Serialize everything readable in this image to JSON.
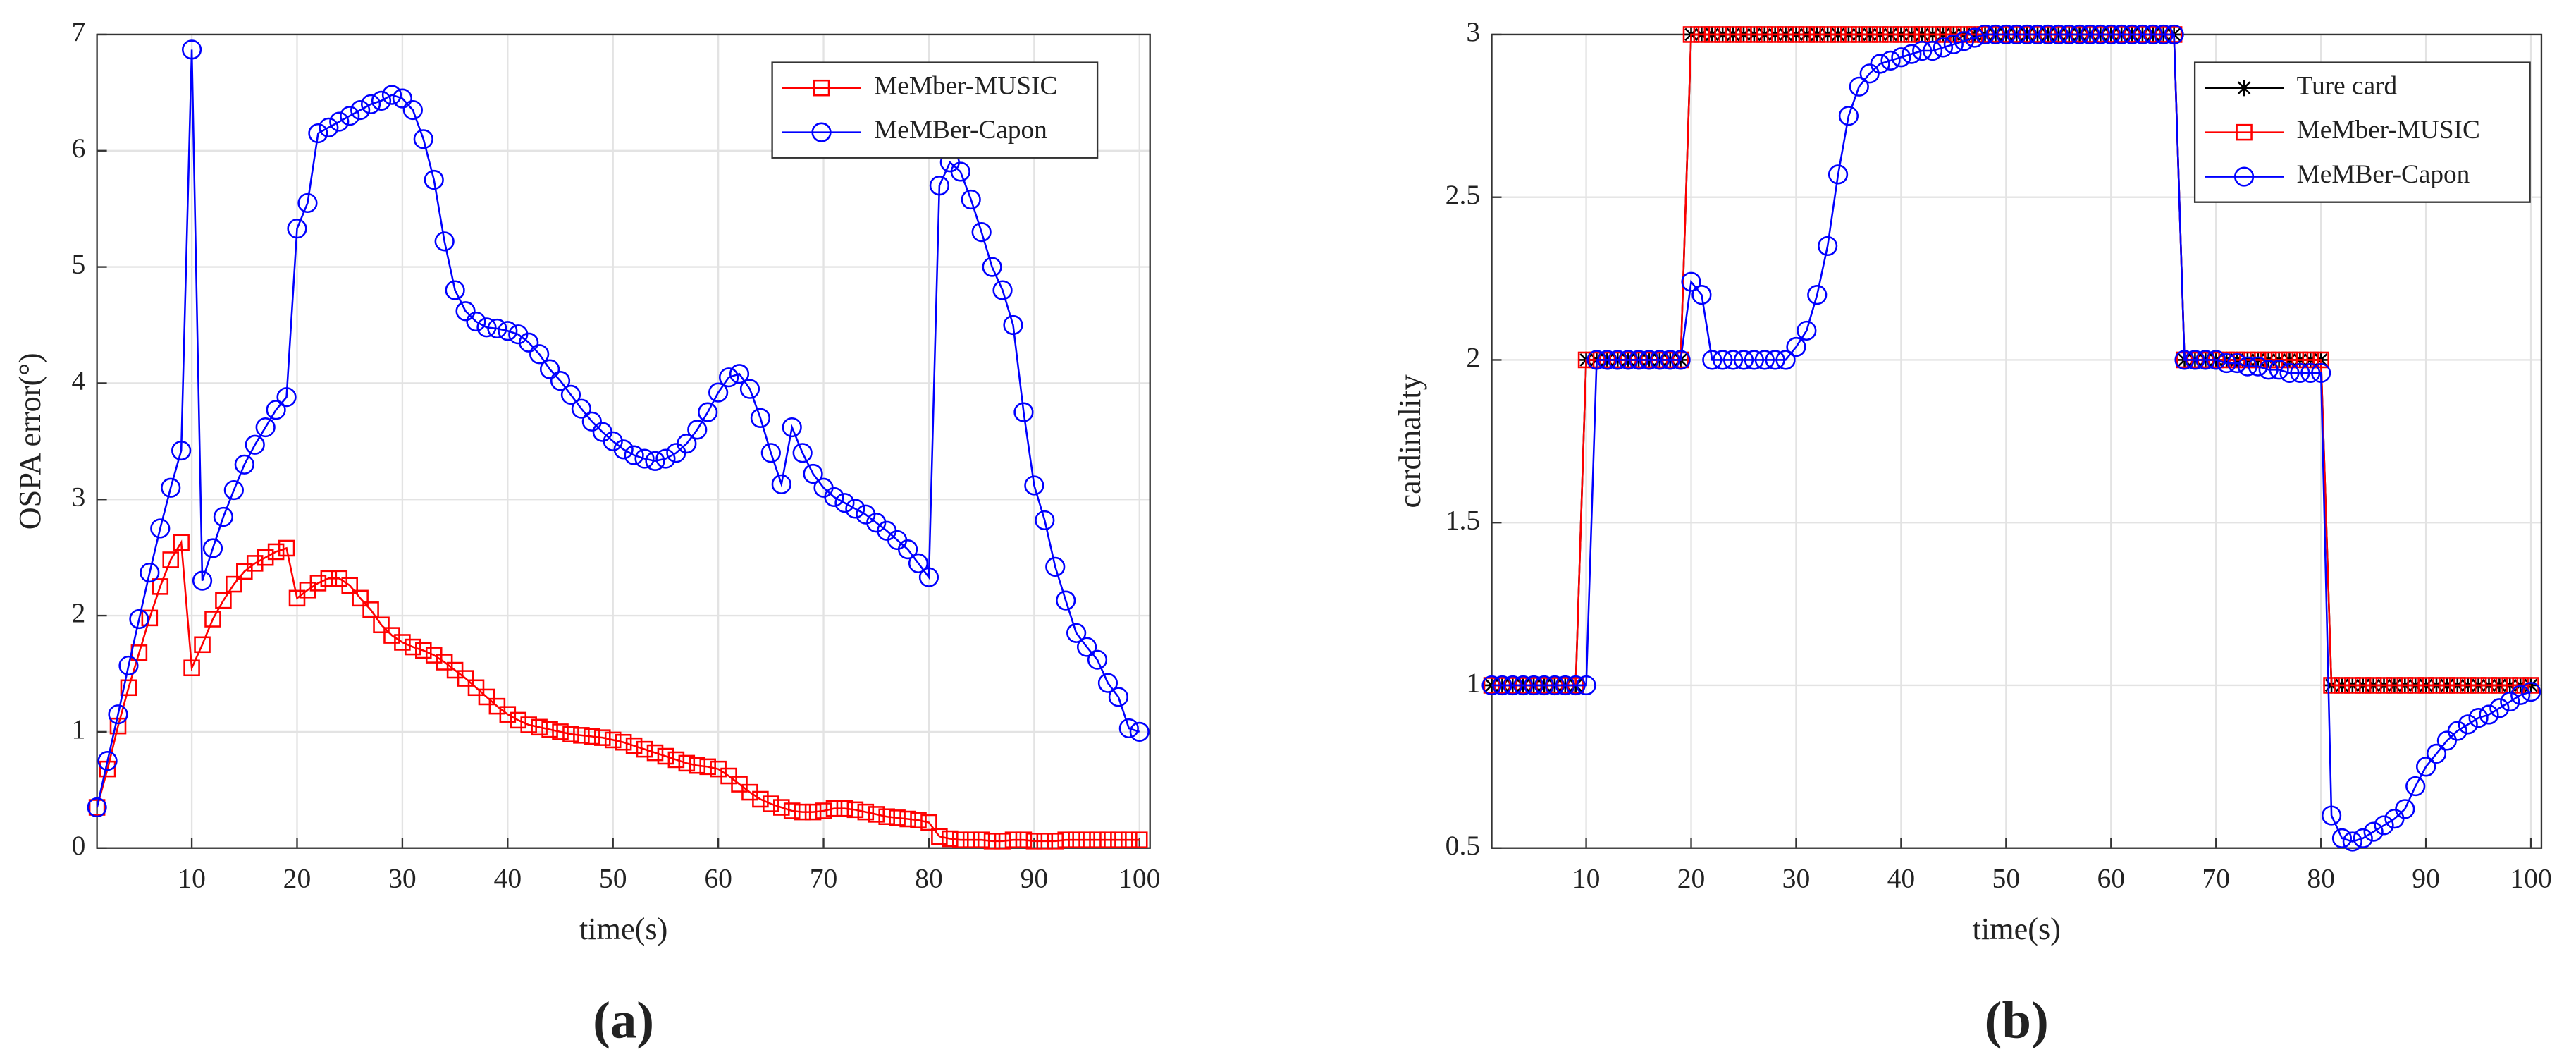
{
  "chart_data": [
    {
      "type": "line",
      "panel_label": "(a)",
      "xlabel": "time(s)",
      "ylabel": "OSPA error(°)",
      "xlim": [
        1,
        101
      ],
      "xticks": [
        10,
        20,
        30,
        40,
        50,
        60,
        70,
        80,
        90,
        100
      ],
      "ylim": [
        0,
        7
      ],
      "yticks": [
        0,
        1,
        2,
        3,
        4,
        5,
        6,
        7
      ],
      "grid": true,
      "legend": "upper right",
      "x": [
        1,
        2,
        3,
        4,
        5,
        6,
        7,
        8,
        9,
        10,
        11,
        12,
        13,
        14,
        15,
        16,
        17,
        18,
        19,
        20,
        21,
        22,
        23,
        24,
        25,
        26,
        27,
        28,
        29,
        30,
        31,
        32,
        33,
        34,
        35,
        36,
        37,
        38,
        39,
        40,
        41,
        42,
        43,
        44,
        45,
        46,
        47,
        48,
        49,
        50,
        51,
        52,
        53,
        54,
        55,
        56,
        57,
        58,
        59,
        60,
        61,
        62,
        63,
        64,
        65,
        66,
        67,
        68,
        69,
        70,
        71,
        72,
        73,
        74,
        75,
        76,
        77,
        78,
        79,
        80,
        81,
        82,
        83,
        84,
        85,
        86,
        87,
        88,
        89,
        90,
        91,
        92,
        93,
        94,
        95,
        96,
        97,
        98,
        99,
        100
      ],
      "series": [
        {
          "name": "MeMber-MUSIC",
          "color": "#ff0000",
          "marker": "square",
          "values": [
            0.35,
            0.68,
            1.05,
            1.38,
            1.68,
            1.98,
            2.25,
            2.48,
            2.63,
            1.55,
            1.75,
            1.97,
            2.13,
            2.27,
            2.38,
            2.45,
            2.5,
            2.55,
            2.58,
            2.15,
            2.22,
            2.28,
            2.32,
            2.32,
            2.26,
            2.15,
            2.05,
            1.92,
            1.83,
            1.77,
            1.73,
            1.7,
            1.66,
            1.6,
            1.53,
            1.46,
            1.38,
            1.3,
            1.22,
            1.15,
            1.1,
            1.06,
            1.04,
            1.02,
            1.0,
            0.98,
            0.97,
            0.96,
            0.95,
            0.93,
            0.91,
            0.88,
            0.85,
            0.82,
            0.79,
            0.76,
            0.73,
            0.71,
            0.7,
            0.68,
            0.62,
            0.55,
            0.48,
            0.42,
            0.38,
            0.35,
            0.32,
            0.31,
            0.31,
            0.32,
            0.34,
            0.34,
            0.33,
            0.31,
            0.29,
            0.27,
            0.26,
            0.25,
            0.24,
            0.22,
            0.1,
            0.08,
            0.07,
            0.07,
            0.07,
            0.06,
            0.06,
            0.07,
            0.07,
            0.06,
            0.06,
            0.06,
            0.07,
            0.07,
            0.07,
            0.07,
            0.07,
            0.07,
            0.07,
            0.07
          ]
        },
        {
          "name": "MeMBer-Capon",
          "color": "#0000ff",
          "marker": "circle",
          "values": [
            0.35,
            0.75,
            1.15,
            1.57,
            1.97,
            2.37,
            2.75,
            3.1,
            3.42,
            6.87,
            2.3,
            2.58,
            2.85,
            3.08,
            3.3,
            3.47,
            3.62,
            3.77,
            3.88,
            5.33,
            5.55,
            6.15,
            6.2,
            6.25,
            6.3,
            6.35,
            6.4,
            6.43,
            6.48,
            6.45,
            6.35,
            6.1,
            5.75,
            5.22,
            4.8,
            4.62,
            4.53,
            4.48,
            4.47,
            4.45,
            4.42,
            4.35,
            4.25,
            4.12,
            4.02,
            3.9,
            3.78,
            3.67,
            3.58,
            3.5,
            3.43,
            3.38,
            3.35,
            3.33,
            3.35,
            3.4,
            3.48,
            3.6,
            3.75,
            3.92,
            4.05,
            4.08,
            3.95,
            3.7,
            3.4,
            3.13,
            3.62,
            3.4,
            3.22,
            3.1,
            3.02,
            2.97,
            2.92,
            2.87,
            2.8,
            2.73,
            2.65,
            2.57,
            2.45,
            2.33,
            5.7,
            5.9,
            5.82,
            5.58,
            5.3,
            5.0,
            4.8,
            4.5,
            3.75,
            3.12,
            2.82,
            2.42,
            2.13,
            1.85,
            1.73,
            1.62,
            1.42,
            1.3,
            1.03,
            1.0
          ]
        }
      ]
    },
    {
      "type": "line",
      "panel_label": "(b)",
      "xlabel": "time(s)",
      "ylabel": "cardinality",
      "xlim": [
        1,
        101
      ],
      "xticks": [
        10,
        20,
        30,
        40,
        50,
        60,
        70,
        80,
        90,
        100
      ],
      "ylim": [
        0.5,
        3
      ],
      "yticks": [
        0.5,
        1,
        1.5,
        2,
        2.5,
        3
      ],
      "grid": true,
      "legend": "upper right",
      "x": [
        1,
        2,
        3,
        4,
        5,
        6,
        7,
        8,
        9,
        10,
        11,
        12,
        13,
        14,
        15,
        16,
        17,
        18,
        19,
        20,
        21,
        22,
        23,
        24,
        25,
        26,
        27,
        28,
        29,
        30,
        31,
        32,
        33,
        34,
        35,
        36,
        37,
        38,
        39,
        40,
        41,
        42,
        43,
        44,
        45,
        46,
        47,
        48,
        49,
        50,
        51,
        52,
        53,
        54,
        55,
        56,
        57,
        58,
        59,
        60,
        61,
        62,
        63,
        64,
        65,
        66,
        67,
        68,
        69,
        70,
        71,
        72,
        73,
        74,
        75,
        76,
        77,
        78,
        79,
        80,
        81,
        82,
        83,
        84,
        85,
        86,
        87,
        88,
        89,
        90,
        91,
        92,
        93,
        94,
        95,
        96,
        97,
        98,
        99,
        100
      ],
      "series": [
        {
          "name": "Ture card",
          "color": "#000000",
          "marker": "asterisk",
          "values": [
            1,
            1,
            1,
            1,
            1,
            1,
            1,
            1,
            1,
            2,
            2,
            2,
            2,
            2,
            2,
            2,
            2,
            2,
            2,
            3,
            3,
            3,
            3,
            3,
            3,
            3,
            3,
            3,
            3,
            3,
            3,
            3,
            3,
            3,
            3,
            3,
            3,
            3,
            3,
            3,
            3,
            3,
            3,
            3,
            3,
            3,
            3,
            3,
            3,
            3,
            3,
            3,
            3,
            3,
            3,
            3,
            3,
            3,
            3,
            3,
            3,
            3,
            3,
            3,
            3,
            3,
            2,
            2,
            2,
            2,
            2,
            2,
            2,
            2,
            2,
            2,
            2,
            2,
            2,
            2,
            1,
            1,
            1,
            1,
            1,
            1,
            1,
            1,
            1,
            1,
            1,
            1,
            1,
            1,
            1,
            1,
            1,
            1,
            1,
            1
          ]
        },
        {
          "name": "MeMber-MUSIC",
          "color": "#ff0000",
          "marker": "square",
          "values": [
            1,
            1,
            1,
            1,
            1,
            1,
            1,
            1,
            1,
            2,
            2,
            2,
            2,
            2,
            2,
            2,
            2,
            2,
            2,
            3,
            3,
            3,
            3,
            3,
            3,
            3,
            3,
            3,
            3,
            3,
            3,
            3,
            3,
            3,
            3,
            3,
            3,
            3,
            3,
            3,
            3,
            3,
            3,
            3,
            3,
            3,
            3,
            3,
            3,
            3,
            3,
            3,
            3,
            3,
            3,
            3,
            3,
            3,
            3,
            3,
            3,
            3,
            3,
            3,
            3,
            3,
            2,
            2,
            2,
            2,
            2,
            2,
            2,
            2,
            2,
            2,
            2,
            2,
            2,
            2,
            1,
            1,
            1,
            1,
            1,
            1,
            1,
            1,
            1,
            1,
            1,
            1,
            1,
            1,
            1,
            1,
            1,
            1,
            1,
            1
          ]
        },
        {
          "name": "MeMBer-Capon",
          "color": "#0000ff",
          "marker": "circle",
          "values": [
            1,
            1,
            1,
            1,
            1,
            1,
            1,
            1,
            1,
            1,
            2,
            2,
            2,
            2,
            2,
            2,
            2,
            2,
            2,
            2.24,
            2.2,
            2,
            2,
            2,
            2,
            2,
            2,
            2,
            2,
            2.04,
            2.09,
            2.2,
            2.35,
            2.57,
            2.75,
            2.84,
            2.88,
            2.91,
            2.92,
            2.93,
            2.94,
            2.95,
            2.95,
            2.96,
            2.97,
            2.98,
            2.99,
            3,
            3,
            3,
            3,
            3,
            3,
            3,
            3,
            3,
            3,
            3,
            3,
            3,
            3,
            3,
            3,
            3,
            3,
            3,
            2,
            2,
            2,
            2,
            1.99,
            1.99,
            1.98,
            1.98,
            1.97,
            1.97,
            1.96,
            1.96,
            1.96,
            1.96,
            0.6,
            0.53,
            0.52,
            0.53,
            0.55,
            0.57,
            0.59,
            0.62,
            0.69,
            0.75,
            0.79,
            0.83,
            0.86,
            0.88,
            0.9,
            0.91,
            0.93,
            0.95,
            0.97,
            0.98
          ]
        }
      ]
    }
  ]
}
